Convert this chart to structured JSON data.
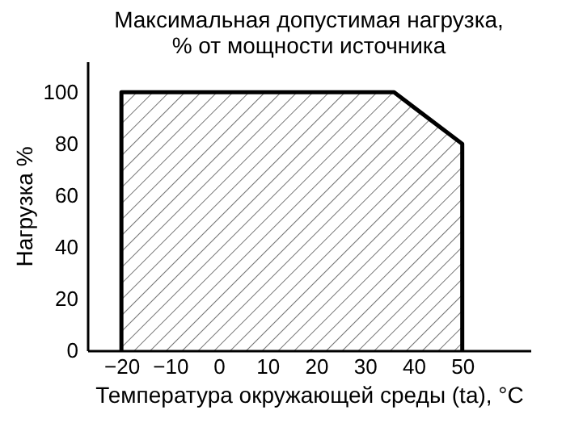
{
  "chart_data": {
    "type": "area",
    "title": "Максимальная допустимая нагрузка,\n% от мощности источника",
    "xlabel": "Температура окружающей среды (ta), °C",
    "ylabel": "Нагрузка %",
    "x": [
      -20,
      -20,
      36,
      50,
      50
    ],
    "series": [
      {
        "color": "#000000",
        "values": [
          0,
          100,
          100,
          80,
          0
        ]
      }
    ],
    "xlim": [
      -27,
      64
    ],
    "xticks": [
      -20,
      -10,
      0,
      10,
      20,
      30,
      40,
      50
    ],
    "ylim": [
      0,
      112
    ],
    "yticks": [
      0,
      20,
      40,
      60,
      80,
      100
    ],
    "grid": false
  }
}
